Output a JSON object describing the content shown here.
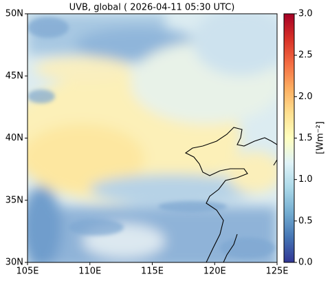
{
  "map": {
    "title": "UVB, global ( 2026-04-11 05:30 UTC)",
    "xlim": [
      105,
      125
    ],
    "ylim": [
      30,
      50
    ],
    "xticks": [
      {
        "value": 105,
        "label": "105E"
      },
      {
        "value": 110,
        "label": "110E"
      },
      {
        "value": 115,
        "label": "115E"
      },
      {
        "value": 120,
        "label": "120E"
      },
      {
        "value": 125,
        "label": "125E"
      }
    ],
    "yticks": [
      {
        "value": 30,
        "label": "30N"
      },
      {
        "value": 35,
        "label": "35N"
      },
      {
        "value": 40,
        "label": "40N"
      },
      {
        "value": 45,
        "label": "45N"
      },
      {
        "value": 50,
        "label": "50N"
      }
    ],
    "colorbar": {
      "label": "[Wm⁻²]",
      "clim": [
        0,
        3
      ],
      "ticks": [
        {
          "value": 0,
          "label": "0.0"
        },
        {
          "value": 0.5,
          "label": "0.5"
        },
        {
          "value": 1,
          "label": "1.0"
        },
        {
          "value": 1.5,
          "label": "1.5"
        },
        {
          "value": 2,
          "label": "2.0"
        },
        {
          "value": 2.5,
          "label": "2.5"
        },
        {
          "value": 3,
          "label": "3.0"
        }
      ]
    }
  }
}
